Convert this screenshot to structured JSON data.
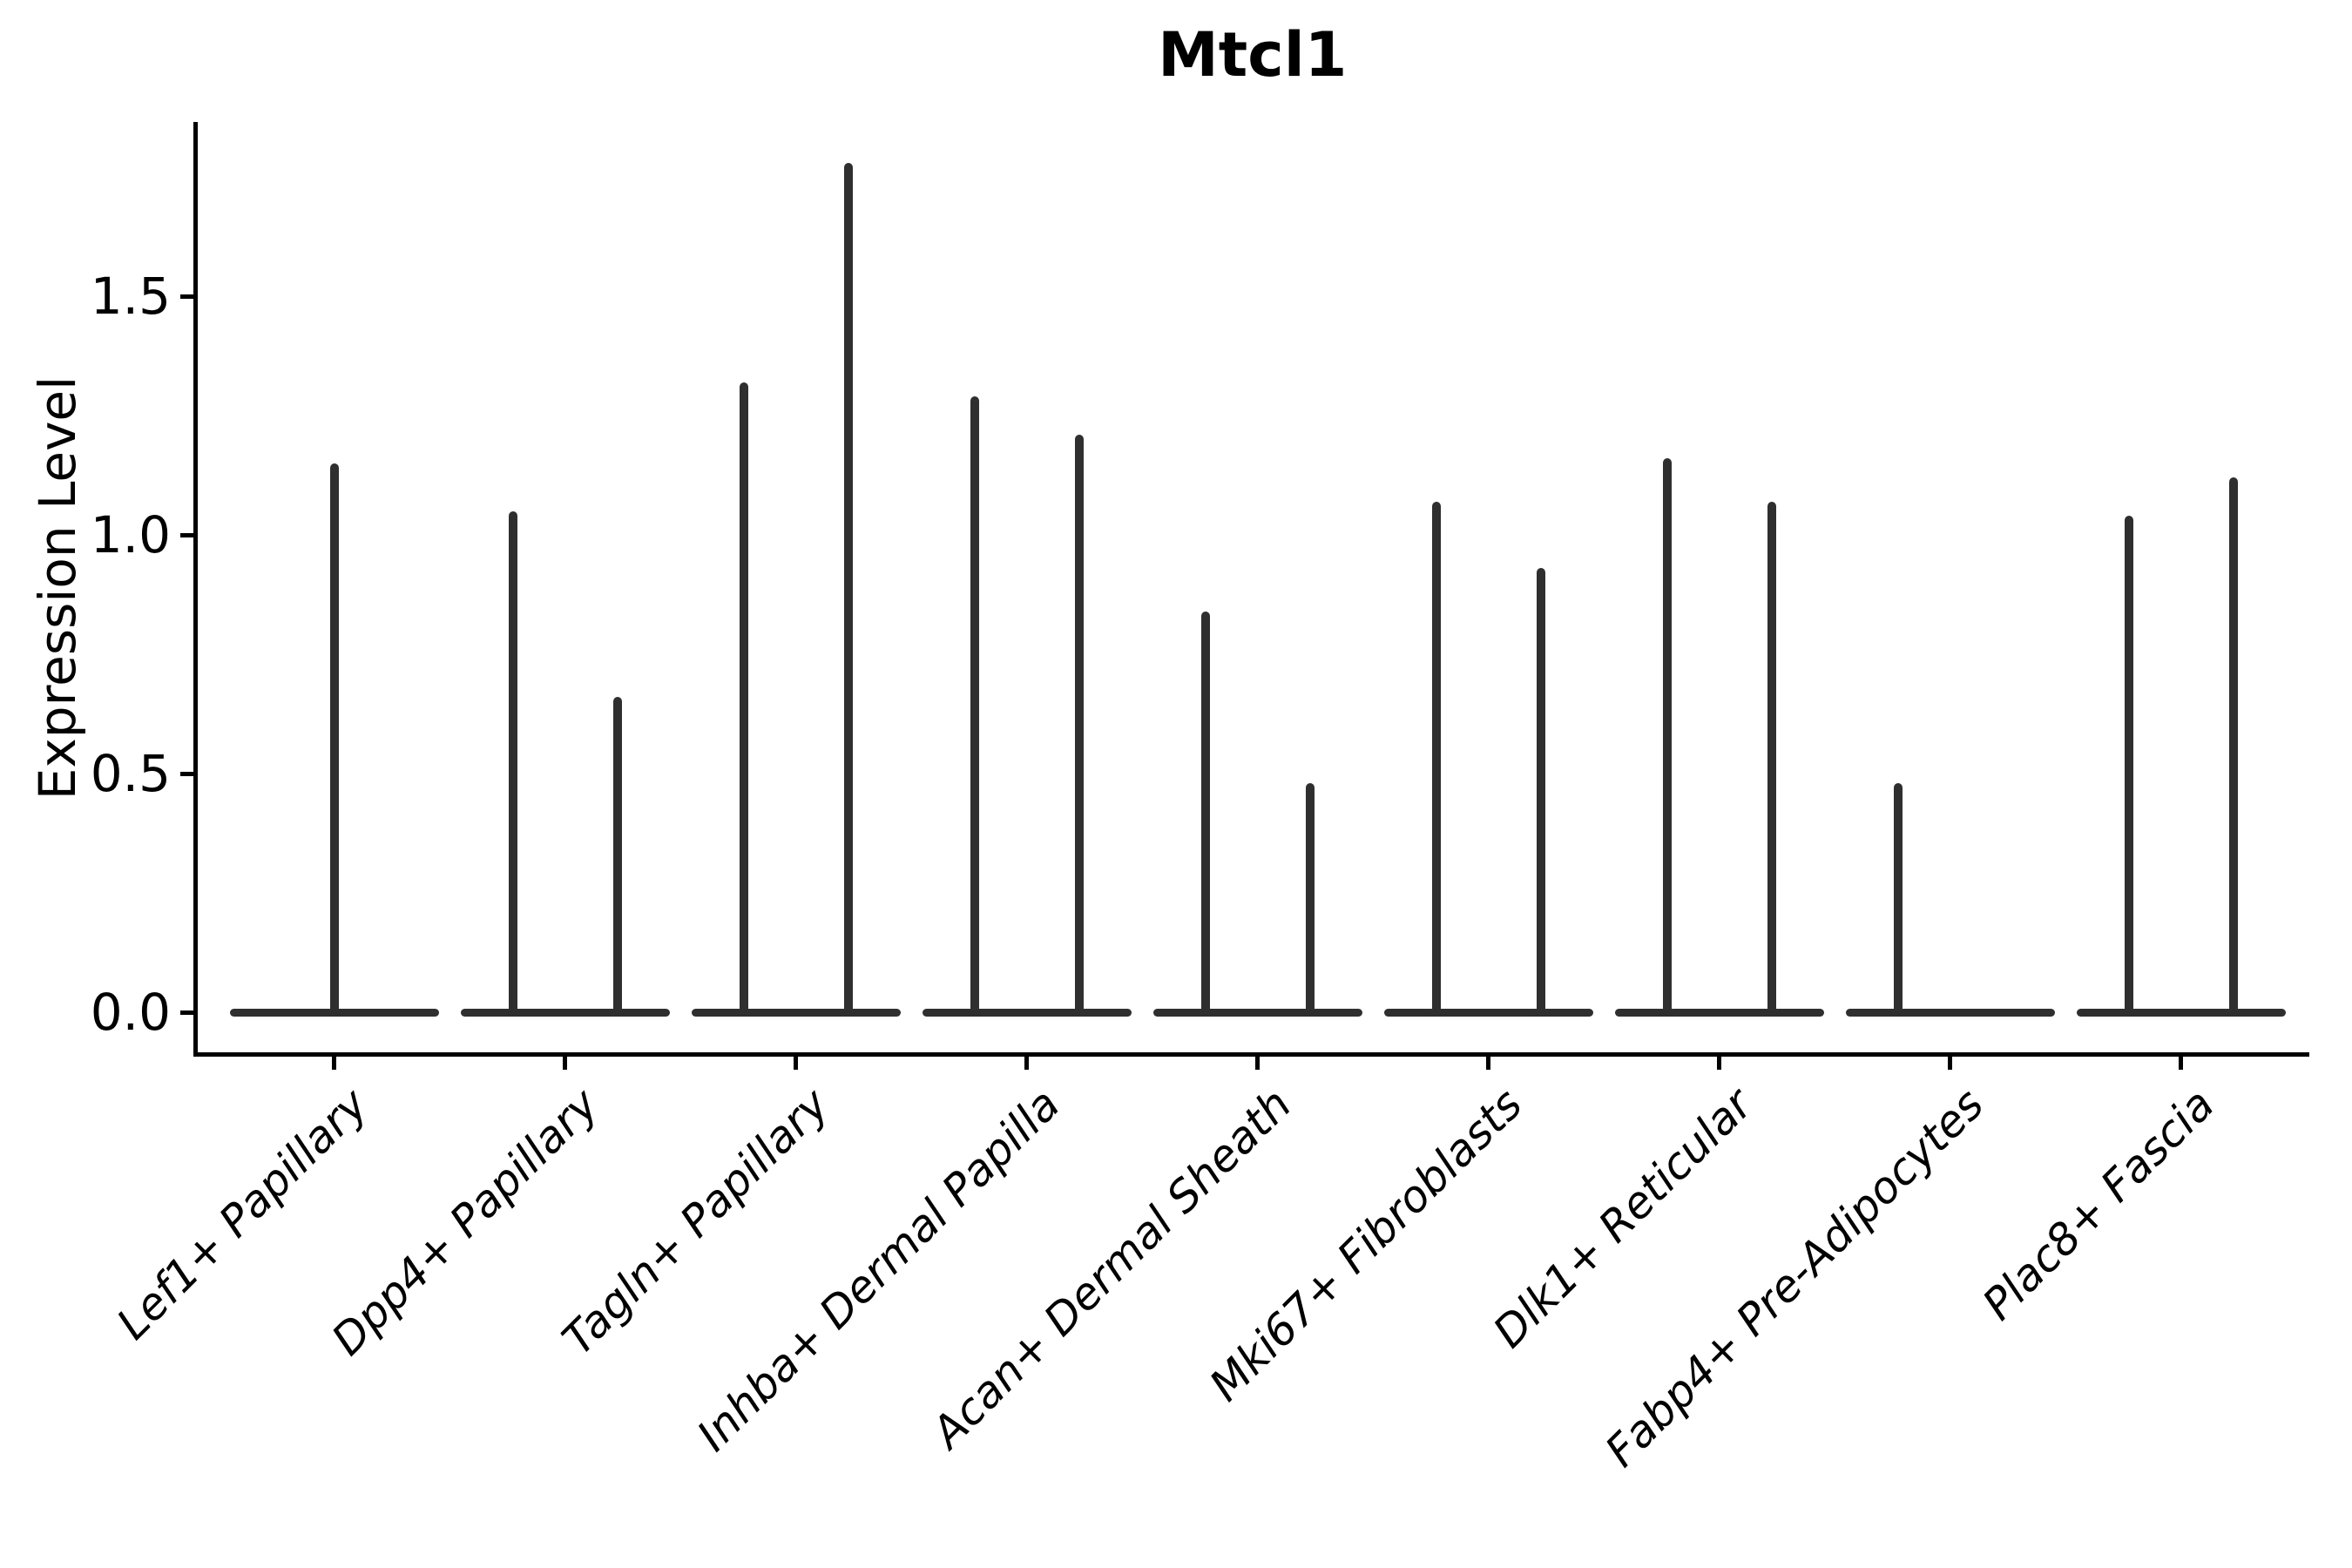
{
  "title": "Mtcl1",
  "y_axis": {
    "label": "Expression Level",
    "tick_labels": [
      "0.0",
      "0.5",
      "1.0",
      "1.5"
    ],
    "tick_values": [
      0.0,
      0.5,
      1.0,
      1.5
    ]
  },
  "colors": {
    "violin": "#2f2f2f",
    "axis": "#000000",
    "text": "#000000",
    "background": "#ffffff"
  },
  "chart_data": {
    "type": "violin",
    "title": "Mtcl1",
    "xlabel": "",
    "ylabel": "Expression Level",
    "yticks": [
      0.0,
      0.5,
      1.0,
      1.5
    ],
    "ylim": [
      -0.07,
      1.87
    ],
    "grid": false,
    "legend": "none",
    "x_tick_rotation_deg": 45,
    "categories": [
      "Lef1+ Papillary",
      "Dpp4+ Papillary",
      "Tagln+ Papillary",
      "Inhba+ Dermal Papilla",
      "Acan+ Dermal Sheath",
      "Mki67+ Fibroblasts",
      "Dlk1+ Reticular",
      "Fabp4+ Pre-Adipocytes",
      "Plac8+ Fascia"
    ],
    "groups": [
      {
        "label": "Lef1+ Papillary",
        "violin_max_expression": [
          1.15
        ]
      },
      {
        "label": "Dpp4+ Papillary",
        "violin_max_expression": [
          1.05,
          0.66
        ]
      },
      {
        "label": "Tagln+ Papillary",
        "violin_max_expression": [
          1.32,
          1.78
        ]
      },
      {
        "label": "Inhba+ Dermal Papilla",
        "violin_max_expression": [
          1.29,
          1.21
        ]
      },
      {
        "label": "Acan+ Dermal Sheath",
        "violin_max_expression": [
          0.84,
          0.48
        ]
      },
      {
        "label": "Mki67+ Fibroblasts",
        "violin_max_expression": [
          1.07,
          0.93
        ]
      },
      {
        "label": "Dlk1+ Reticular",
        "violin_max_expression": [
          1.16,
          1.07
        ]
      },
      {
        "label": "Fabp4+ Pre-Adipocytes",
        "violin_max_expression": [
          0.48,
          0.0
        ]
      },
      {
        "label": "Plac8+ Fascia",
        "violin_max_expression": [
          1.04,
          1.12
        ]
      }
    ]
  }
}
